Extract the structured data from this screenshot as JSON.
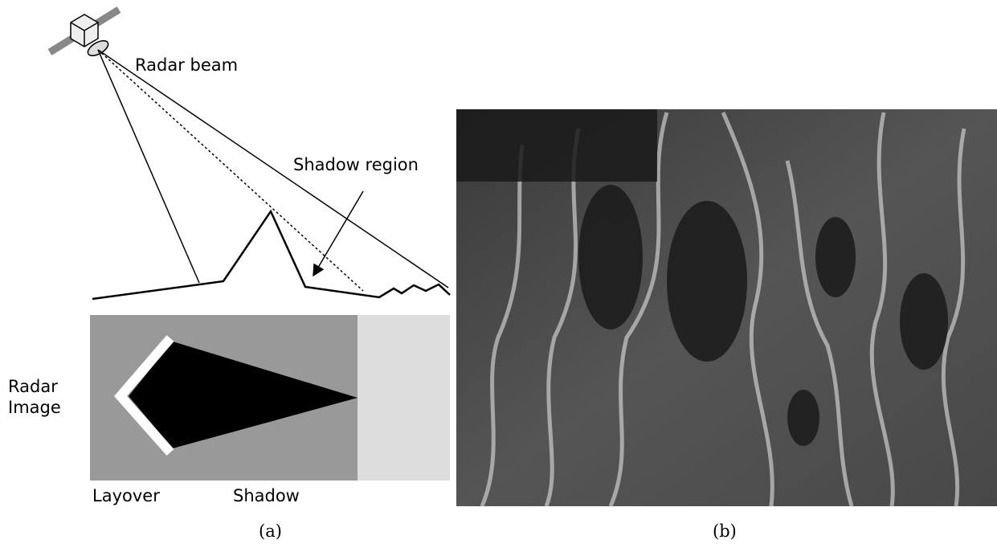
{
  "panel_a": {
    "beam_label": "Radar beam",
    "shadow_region_label": "Shadow region",
    "image_label_lines": [
      "Radar",
      "Image"
    ],
    "layover_label": "Layover",
    "shadow_label": "Shadow",
    "caption": "(a)"
  },
  "panel_b": {
    "caption": "(b)"
  }
}
